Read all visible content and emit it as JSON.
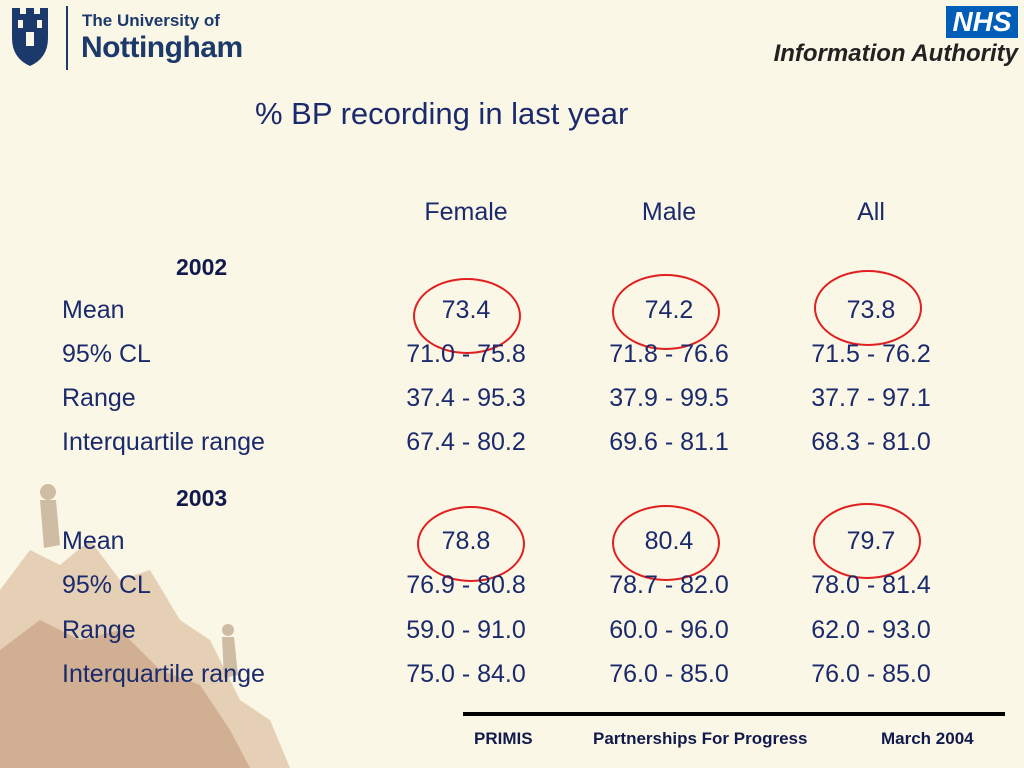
{
  "header": {
    "university_line1": "The University of",
    "university_line2": "Nottingham",
    "nhs_badge": "NHS",
    "nhs_sub": "Information Authority"
  },
  "title": "% BP recording in last year",
  "columns": [
    "Female",
    "Male",
    "All"
  ],
  "sections": [
    {
      "year": "2002",
      "rows": [
        {
          "label": "Mean",
          "values": [
            "73.4",
            "74.2",
            "73.8"
          ],
          "highlighted": true
        },
        {
          "label": "95% CL",
          "values": [
            "71.0 - 75.8",
            "71.8 - 76.6",
            "71.5 - 76.2"
          ]
        },
        {
          "label": "Range",
          "values": [
            "37.4 - 95.3",
            "37.9 - 99.5",
            "37.7 - 97.1"
          ]
        },
        {
          "label": "Interquartile range",
          "values": [
            "67.4 - 80.2",
            "69.6 - 81.1",
            "68.3 - 81.0"
          ]
        }
      ]
    },
    {
      "year": "2003",
      "rows": [
        {
          "label": "Mean",
          "values": [
            "78.8",
            "80.4",
            "79.7"
          ],
          "highlighted": true
        },
        {
          "label": "95% CL",
          "values": [
            "76.9 - 80.8",
            "78.7 - 82.0",
            "78.0 - 81.4"
          ]
        },
        {
          "label": "Range",
          "values": [
            "59.0 - 91.0",
            "60.0 - 96.0",
            "62.0 - 93.0"
          ]
        },
        {
          "label": "Interquartile range",
          "values": [
            "75.0 - 84.0",
            "76.0 - 85.0",
            "76.0 - 85.0"
          ]
        }
      ]
    }
  ],
  "footer": {
    "left": "PRIMIS",
    "center": "Partnerships For Progress",
    "right": "March 2004"
  },
  "colors": {
    "text": "#1a2a6c",
    "highlight_ring": "#e02020",
    "nhs_blue": "#005eb8",
    "background": "#fbf7e6"
  }
}
